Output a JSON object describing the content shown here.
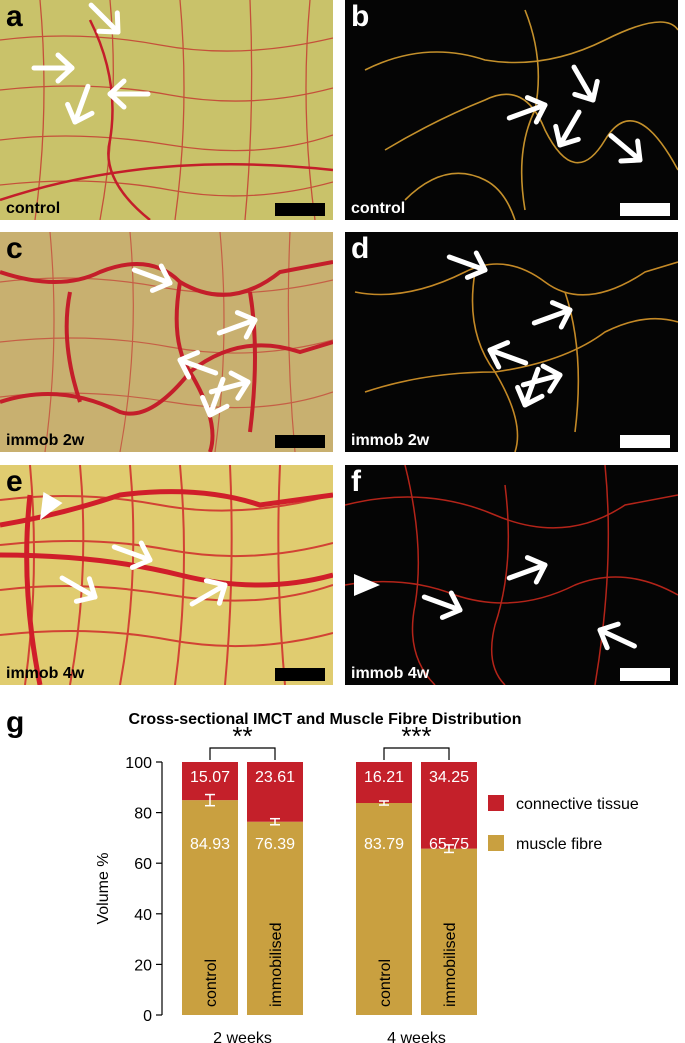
{
  "panels": [
    {
      "letter": "a",
      "condition": "control",
      "style": "light"
    },
    {
      "letter": "b",
      "condition": "control",
      "style": "dark"
    },
    {
      "letter": "c",
      "condition": "immob 2w",
      "style": "light"
    },
    {
      "letter": "d",
      "condition": "immob 2w",
      "style": "dark"
    },
    {
      "letter": "e",
      "condition": "immob 4w",
      "style": "light"
    },
    {
      "letter": "f",
      "condition": "immob 4w",
      "style": "dark"
    }
  ],
  "colors": {
    "picrosirius_bg": "#d4b860",
    "picrosirius_red": "#c41e2a",
    "fluor_bg": "#050505",
    "fluor_fibre": "#e8b030",
    "connective_tissue": "#c4202a",
    "muscle_fibre": "#c9a040"
  },
  "chart_label": "g",
  "chart_data": {
    "type": "bar",
    "stacked": true,
    "title": "Cross-sectional IMCT and Muscle Fibre Distribution",
    "ylabel": "Volume %",
    "xlabel": "",
    "ylim": [
      0,
      100
    ],
    "yticks": [
      0,
      20,
      40,
      60,
      80,
      100
    ],
    "groups": [
      {
        "name": "2 weeks",
        "significance": "**"
      },
      {
        "name": "4 weeks",
        "significance": "***"
      }
    ],
    "categories": [
      "control",
      "immobilised",
      "control",
      "immobilised"
    ],
    "category_group": [
      0,
      0,
      1,
      1
    ],
    "series": [
      {
        "name": "muscle fibre",
        "values": [
          84.93,
          76.39,
          83.79,
          65.75
        ],
        "error": [
          2.2,
          1.2,
          0.8,
          1.5
        ]
      },
      {
        "name": "connective tissue",
        "values": [
          15.07,
          23.61,
          16.21,
          34.25
        ]
      }
    ],
    "legend": "right",
    "grid": false
  }
}
